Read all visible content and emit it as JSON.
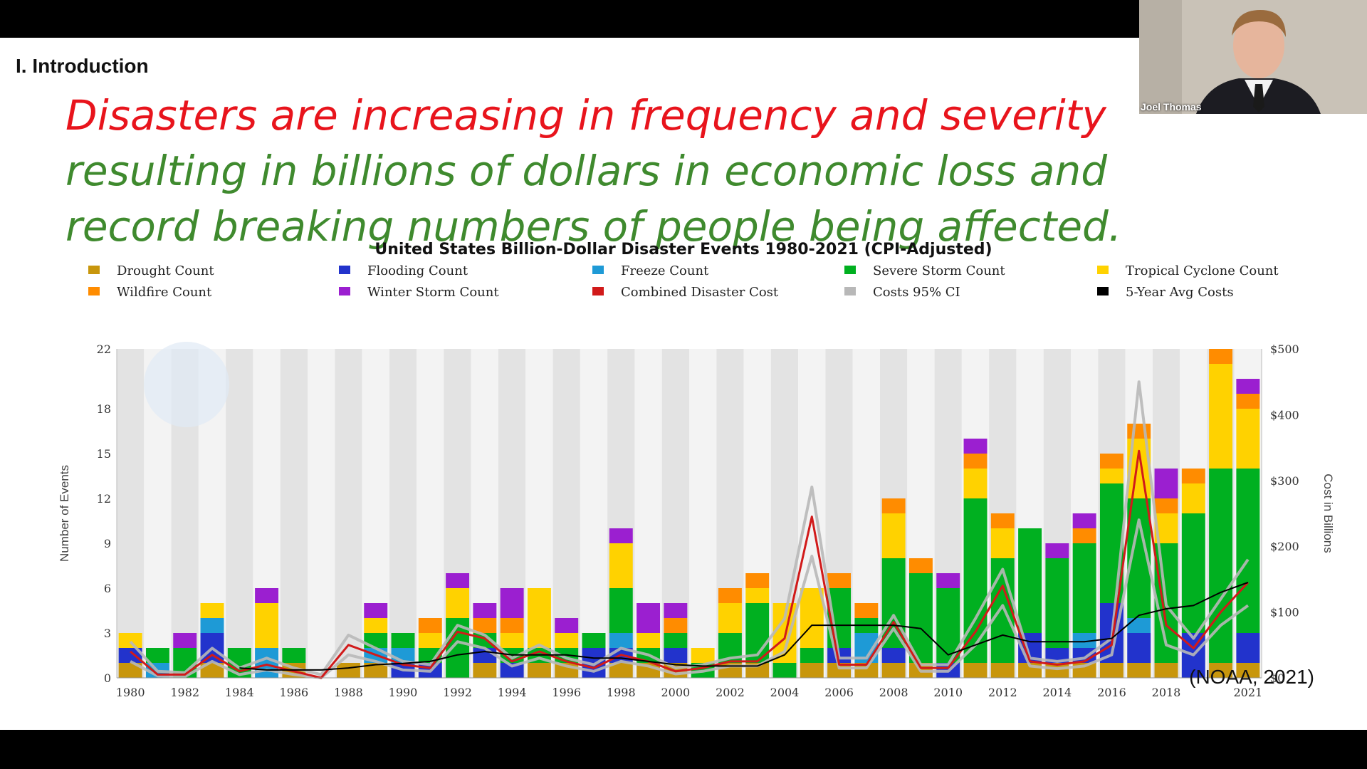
{
  "slide": {
    "section": "I. Introduction",
    "headline_line1": "Disasters are increasing in frequency and severity",
    "headline_line2": "resulting in billions of dollars in economic loss and",
    "headline_line3": "record breaking numbers of people being affected.",
    "source": "(NOAA, 2021)"
  },
  "webcam": {
    "name": "Joel Thomas"
  },
  "colors": {
    "drought": "#c8960c",
    "flooding": "#2233cc",
    "freeze": "#1e9ad6",
    "severe_storm": "#00b020",
    "tropical_cyclone": "#ffd200",
    "wildfire": "#ff8c00",
    "winter_storm": "#9b1fd0",
    "combined_cost": "#d11a1a",
    "ci": "#b8b8b8",
    "avg": "#000000"
  },
  "chart_data": {
    "type": "bar",
    "title": "United States Billion-Dollar Disaster Events 1980-2021 (CPI-Adjusted)",
    "ylabel": "Number of Events",
    "y2label": "Cost in Billions",
    "ylim": [
      0,
      22
    ],
    "y2lim": [
      0,
      500
    ],
    "y_ticks": [
      "0",
      "3",
      "6",
      "9",
      "12",
      "15",
      "18",
      "22"
    ],
    "y2_ticks": [
      "$0",
      "$100",
      "$200",
      "$300",
      "$400",
      "$500"
    ],
    "x_tick_labels": [
      "1980",
      "1982",
      "1984",
      "1986",
      "1988",
      "1990",
      "1992",
      "1994",
      "1996",
      "1998",
      "2000",
      "2002",
      "2004",
      "2006",
      "2008",
      "2010",
      "2012",
      "2014",
      "2016",
      "2018",
      "2021"
    ],
    "legend_placement": "top",
    "legend": [
      {
        "key": "drought",
        "label": "Drought Count"
      },
      {
        "key": "flooding",
        "label": "Flooding Count"
      },
      {
        "key": "freeze",
        "label": "Freeze Count"
      },
      {
        "key": "severe_storm",
        "label": "Severe Storm Count"
      },
      {
        "key": "tropical_cyclone",
        "label": "Tropical Cyclone Count"
      },
      {
        "key": "wildfire",
        "label": "Wildfire Count"
      },
      {
        "key": "winter_storm",
        "label": "Winter Storm Count"
      },
      {
        "key": "combined_cost",
        "label": "Combined Disaster Cost"
      },
      {
        "key": "ci",
        "label": "Costs 95% CI"
      },
      {
        "key": "avg",
        "label": "5-Year Avg Costs"
      }
    ],
    "years": [
      1980,
      1981,
      1982,
      1983,
      1984,
      1985,
      1986,
      1987,
      1988,
      1989,
      1990,
      1991,
      1992,
      1993,
      1994,
      1995,
      1996,
      1997,
      1998,
      1999,
      2000,
      2001,
      2002,
      2003,
      2004,
      2005,
      2006,
      2007,
      2008,
      2009,
      2010,
      2011,
      2012,
      2013,
      2014,
      2015,
      2016,
      2017,
      2018,
      2019,
      2020,
      2021
    ],
    "stack_order": [
      "drought",
      "flooding",
      "freeze",
      "severe_storm",
      "tropical_cyclone",
      "wildfire",
      "winter_storm"
    ],
    "counts": {
      "drought": [
        1,
        0,
        0,
        1,
        0,
        0,
        1,
        0,
        1,
        1,
        0,
        0,
        0,
        1,
        0,
        1,
        1,
        0,
        1,
        1,
        1,
        0,
        1,
        1,
        0,
        1,
        1,
        1,
        1,
        1,
        0,
        1,
        1,
        1,
        1,
        1,
        1,
        1,
        1,
        0,
        1,
        1
      ],
      "flooding": [
        1,
        0,
        0,
        2,
        0,
        0,
        0,
        0,
        0,
        0,
        1,
        1,
        0,
        1,
        1,
        0,
        0,
        2,
        1,
        0,
        1,
        0,
        0,
        0,
        0,
        0,
        1,
        0,
        1,
        0,
        1,
        0,
        0,
        2,
        1,
        1,
        4,
        2,
        0,
        3,
        0,
        2
      ],
      "freeze": [
        0,
        1,
        0,
        1,
        0,
        2,
        0,
        0,
        0,
        1,
        1,
        0,
        0,
        0,
        0,
        0,
        0,
        0,
        1,
        0,
        0,
        0,
        0,
        0,
        0,
        0,
        0,
        2,
        0,
        0,
        0,
        0,
        0,
        0,
        0,
        1,
        0,
        1,
        0,
        0,
        0,
        0
      ],
      "severe_storm": [
        0,
        1,
        2,
        0,
        2,
        0,
        1,
        0,
        0,
        1,
        1,
        1,
        4,
        1,
        1,
        1,
        1,
        1,
        3,
        1,
        1,
        1,
        2,
        4,
        1,
        1,
        4,
        1,
        6,
        6,
        5,
        11,
        7,
        7,
        6,
        6,
        8,
        8,
        8,
        8,
        13,
        11
      ],
      "tropical_cyclone": [
        1,
        0,
        0,
        1,
        0,
        3,
        0,
        0,
        0,
        1,
        0,
        1,
        2,
        0,
        1,
        4,
        1,
        0,
        3,
        1,
        0,
        1,
        2,
        1,
        4,
        4,
        0,
        0,
        3,
        0,
        0,
        2,
        2,
        0,
        0,
        0,
        1,
        4,
        2,
        2,
        7,
        4
      ],
      "wildfire": [
        0,
        0,
        0,
        0,
        0,
        0,
        0,
        0,
        0,
        0,
        0,
        1,
        0,
        1,
        1,
        0,
        0,
        0,
        0,
        0,
        1,
        0,
        1,
        1,
        0,
        0,
        1,
        1,
        1,
        1,
        0,
        1,
        1,
        0,
        0,
        1,
        1,
        1,
        1,
        1,
        1,
        1
      ],
      "winter_storm": [
        0,
        0,
        1,
        0,
        0,
        1,
        0,
        0,
        0,
        1,
        0,
        0,
        1,
        1,
        2,
        0,
        1,
        0,
        1,
        2,
        1,
        0,
        0,
        0,
        0,
        0,
        0,
        0,
        0,
        0,
        1,
        1,
        0,
        0,
        1,
        1,
        0,
        0,
        2,
        0,
        0,
        1
      ]
    },
    "combined_cost_billions": [
      40,
      5,
      5,
      35,
      10,
      20,
      10,
      0,
      50,
      35,
      20,
      15,
      70,
      60,
      25,
      40,
      25,
      15,
      35,
      25,
      10,
      15,
      25,
      25,
      60,
      245,
      20,
      20,
      85,
      15,
      15,
      70,
      140,
      25,
      20,
      25,
      50,
      345,
      80,
      45,
      100,
      145
    ],
    "ci_upper_billions": [
      55,
      10,
      8,
      45,
      15,
      30,
      15,
      5,
      65,
      45,
      25,
      20,
      80,
      65,
      30,
      50,
      30,
      20,
      45,
      35,
      15,
      20,
      30,
      35,
      90,
      290,
      30,
      30,
      95,
      20,
      20,
      90,
      165,
      30,
      25,
      30,
      60,
      450,
      110,
      60,
      120,
      180
    ],
    "ci_lower_billions": [
      25,
      3,
      2,
      25,
      5,
      12,
      5,
      0,
      35,
      25,
      12,
      10,
      55,
      45,
      18,
      30,
      18,
      10,
      25,
      18,
      6,
      10,
      18,
      18,
      40,
      185,
      15,
      15,
      75,
      10,
      10,
      50,
      110,
      18,
      14,
      18,
      35,
      240,
      50,
      35,
      80,
      110
    ],
    "avg_5yr_billions": [
      null,
      null,
      null,
      null,
      15,
      12,
      12,
      12,
      15,
      20,
      22,
      25,
      35,
      40,
      35,
      35,
      35,
      30,
      30,
      25,
      20,
      18,
      18,
      18,
      35,
      80,
      80,
      80,
      80,
      75,
      35,
      50,
      65,
      55,
      55,
      55,
      60,
      95,
      105,
      110,
      130,
      145
    ]
  }
}
